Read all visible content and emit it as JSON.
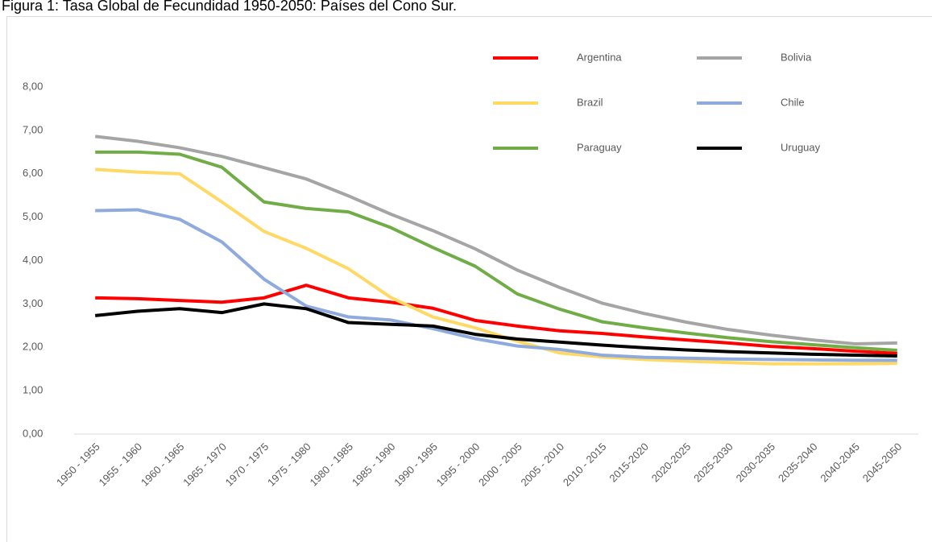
{
  "chart_data": {
    "type": "line",
    "title": "Figura 1: Tasa Global de Fecundidad 1950-2050: Países del Cono Sur.",
    "categories": [
      "1950 - 1955",
      "1955 - 1960",
      "1960 - 1965",
      "1965 - 1970",
      "1970 - 1975",
      "1975 - 1980",
      "1980 - 1985",
      "1985 - 1990",
      "1990 - 1995",
      "1995 - 2000",
      "2000 - 2005",
      "2005 - 2010",
      "2010 - 2015",
      "2015-2020",
      "2020-2025",
      "2025-2030",
      "2030-2035",
      "2035-2040",
      "2040-2045",
      "2045-2050"
    ],
    "series": [
      {
        "name": "Argentina",
        "color": "#ff0000",
        "values": [
          3.14,
          3.12,
          3.08,
          3.04,
          3.14,
          3.43,
          3.14,
          3.04,
          2.9,
          2.62,
          2.49,
          2.38,
          2.32,
          2.24,
          2.17,
          2.1,
          2.02,
          1.97,
          1.91,
          1.86
        ]
      },
      {
        "name": "Bolivia",
        "color": "#a5a5a5",
        "values": [
          6.86,
          6.75,
          6.6,
          6.4,
          6.14,
          5.88,
          5.49,
          5.07,
          4.69,
          4.27,
          3.78,
          3.38,
          3.02,
          2.78,
          2.58,
          2.41,
          2.28,
          2.17,
          2.08,
          2.1
        ]
      },
      {
        "name": "Brazil",
        "color": "#ffd966",
        "values": [
          6.1,
          6.04,
          6.0,
          5.35,
          4.67,
          4.28,
          3.81,
          3.15,
          2.7,
          2.45,
          2.14,
          1.87,
          1.78,
          1.72,
          1.68,
          1.65,
          1.62,
          1.62,
          1.62,
          1.63
        ]
      },
      {
        "name": "Chile",
        "color": "#8faadc",
        "values": [
          5.15,
          5.17,
          4.95,
          4.43,
          3.57,
          2.95,
          2.7,
          2.63,
          2.43,
          2.2,
          2.03,
          1.95,
          1.82,
          1.77,
          1.75,
          1.73,
          1.72,
          1.71,
          1.7,
          1.7
        ]
      },
      {
        "name": "Paraguay",
        "color": "#70ad47",
        "values": [
          6.5,
          6.5,
          6.45,
          6.15,
          5.35,
          5.2,
          5.12,
          4.76,
          4.3,
          3.87,
          3.23,
          2.88,
          2.59,
          2.45,
          2.33,
          2.22,
          2.13,
          2.06,
          1.99,
          1.93
        ]
      },
      {
        "name": "Uruguay",
        "color": "#000000",
        "values": [
          2.73,
          2.83,
          2.89,
          2.8,
          3.0,
          2.89,
          2.57,
          2.53,
          2.49,
          2.3,
          2.19,
          2.12,
          2.05,
          1.99,
          1.94,
          1.9,
          1.87,
          1.84,
          1.82,
          1.8
        ]
      }
    ],
    "ylim": [
      0,
      8
    ],
    "yticks": [
      {
        "value": 0,
        "label": "0,00"
      },
      {
        "value": 1,
        "label": "1,00"
      },
      {
        "value": 2,
        "label": "2,00"
      },
      {
        "value": 3,
        "label": "3,00"
      },
      {
        "value": 4,
        "label": "4,00"
      },
      {
        "value": 5,
        "label": "5,00"
      },
      {
        "value": 6,
        "label": "6,00"
      },
      {
        "value": 7,
        "label": "7,00"
      },
      {
        "value": 8,
        "label": "8,00"
      }
    ],
    "grid": false,
    "legend": "top-right"
  }
}
